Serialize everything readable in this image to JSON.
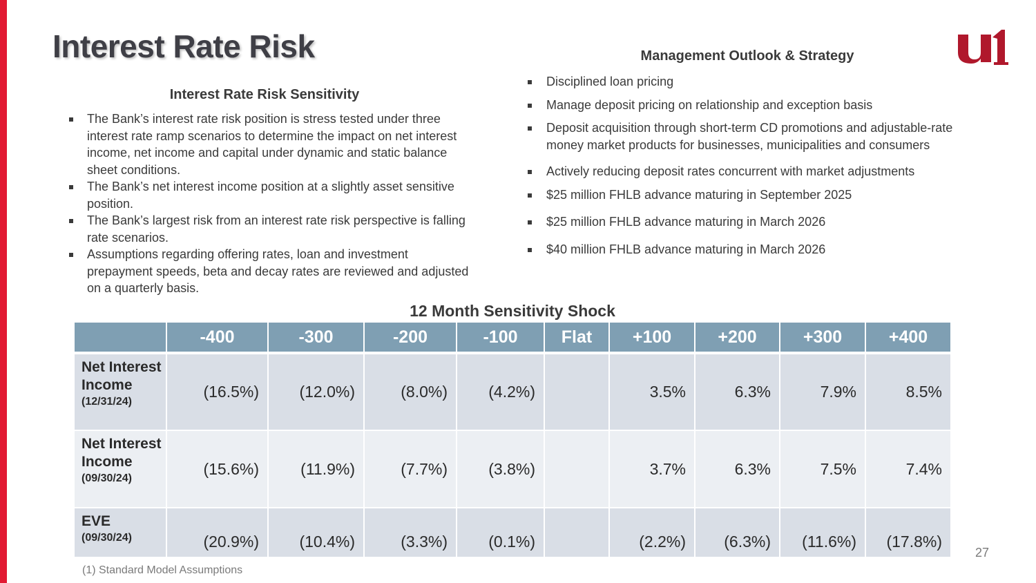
{
  "slide": {
    "title": "Interest Rate Risk",
    "page_number": "27",
    "brand_color": "#e21a33",
    "logo_icon": "u1-logo"
  },
  "left": {
    "heading": "Interest Rate Risk Sensitivity",
    "bullets": [
      "The Bank’s interest rate risk position is stress tested under three interest rate ramp scenarios to determine the impact on net interest income, net income and capital under dynamic and static balance sheet conditions.",
      "The Bank’s net interest income position at a slightly asset sensitive position.",
      "The Bank’s largest risk from an interest rate risk perspective is falling rate scenarios.",
      "Assumptions regarding offering rates, loan and investment prepayment speeds, beta and decay rates are reviewed and adjusted on a quarterly basis."
    ]
  },
  "right": {
    "heading": "Management Outlook & Strategy",
    "bullets": [
      "Disciplined loan pricing",
      "Manage deposit pricing on relationship and exception basis",
      "Deposit acquisition through short-term CD promotions and adjustable-rate money market products for businesses, municipalities and consumers",
      "Actively reducing deposit rates concurrent with market adjustments",
      "$25 million FHLB advance maturing in September 2025",
      "$25 million FHLB advance maturing in March 2026",
      "$40 million FHLB advance maturing in March 2026"
    ]
  },
  "table": {
    "title": "12 Month Sensitivity Shock",
    "header_color": "#7f9fb3",
    "columns": [
      "",
      "-400",
      "-300",
      "-200",
      "-100",
      "Flat",
      "+100",
      "+200",
      "+300",
      "+400"
    ],
    "rows": [
      {
        "label": "Net Interest Income",
        "date": "(12/31/24)",
        "values": [
          "(16.5%)",
          "(12.0%)",
          "(8.0%)",
          "(4.2%)",
          "",
          "3.5%",
          "6.3%",
          "7.9%",
          "8.5%"
        ]
      },
      {
        "label": "Net Interest Income",
        "date": "(09/30/24)",
        "values": [
          "(15.6%)",
          "(11.9%)",
          "(7.7%)",
          "(3.8%)",
          "",
          "3.7%",
          "6.3%",
          "7.5%",
          "7.4%"
        ]
      },
      {
        "label": "EVE",
        "date": "(09/30/24)",
        "values": [
          "(20.9%)",
          "(10.4%)",
          "(3.3%)",
          "(0.1%)",
          "",
          "(2.2%)",
          "(6.3%)",
          "(11.6%)",
          "(17.8%)"
        ]
      }
    ]
  },
  "footnote": "(1) Standard Model Assumptions"
}
